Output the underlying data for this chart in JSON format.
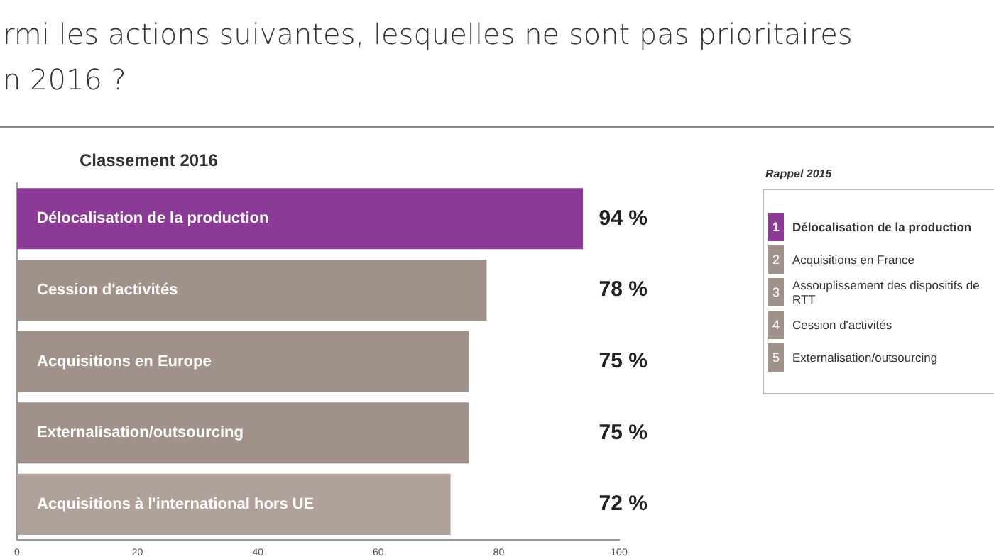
{
  "chart_data": {
    "type": "bar",
    "orientation": "horizontal",
    "title": "rmi les actions suivantes, lesquelles ne sont pas prioritaires\nn 2016 ?",
    "subtitle": "Classement 2016",
    "categories": [
      "Délocalisation de la production",
      "Cession d'activités",
      "Acquisitions en Europe",
      "Externalisation/outsourcing",
      "Acquisitions à l'international hors UE"
    ],
    "values": [
      94,
      78,
      75,
      75,
      72
    ],
    "colors": [
      "#8b3a96",
      "#a0918a",
      "#a0918a",
      "#a0918a",
      "#b0a29b"
    ],
    "value_labels": [
      "94 %",
      "78 %",
      "75 %",
      "75 %",
      "72 %"
    ],
    "xlim": [
      0,
      100
    ],
    "xticks": [
      0,
      20,
      40,
      60,
      80,
      100
    ],
    "tick_labels": "x",
    "grid": false,
    "annotations": [
      "Rappel 2015",
      "1",
      "Délocalisation de la production",
      "2",
      "Acquisitions en France",
      "3",
      "Assouplissement des dispositifs de RTT",
      "4",
      "Cession d'activités",
      "5",
      "Externalisation/outsourcing"
    ]
  }
}
